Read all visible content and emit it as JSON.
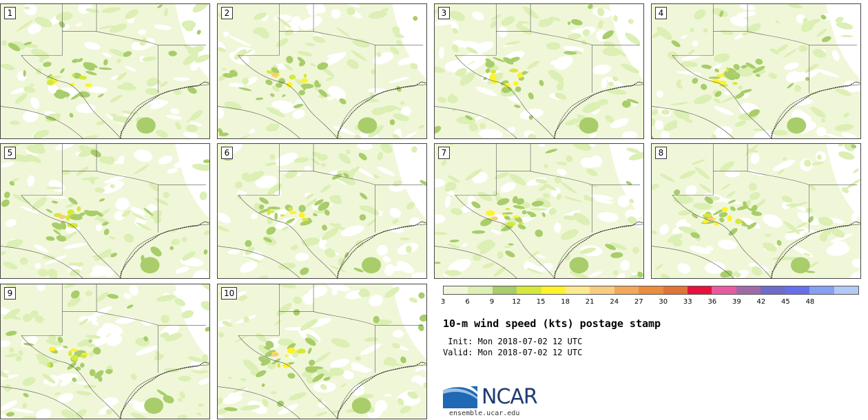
{
  "stamps": [
    "1",
    "2",
    "3",
    "4",
    "5",
    "6",
    "7",
    "8",
    "9",
    "10"
  ],
  "colorbar": {
    "colors": [
      "#f0f7d8",
      "#dcefb4",
      "#a8cd6a",
      "#d6e83a",
      "#fff22a",
      "#fde98e",
      "#f8cc80",
      "#f2a85a",
      "#ea8d3e",
      "#e07436",
      "#e8103c",
      "#e85aa0",
      "#a06aa8",
      "#6e6cc8",
      "#6670ea",
      "#86a0f2",
      "#b4c8f4"
    ],
    "ticks": [
      "3",
      "6",
      "9",
      "12",
      "15",
      "18",
      "21",
      "24",
      "27",
      "30",
      "33",
      "36",
      "39",
      "42",
      "45",
      "48"
    ]
  },
  "title": "10-m wind speed (kts) postage stamp",
  "init": " Init: Mon 2018-07-02 12 UTC",
  "valid": "Valid: Mon 2018-07-02 12 UTC",
  "logo": {
    "text": "NCAR",
    "colors": {
      "blue": "#1f68b3",
      "navy": "#1f3b73"
    }
  },
  "site": "ensemble.ucar.edu"
}
